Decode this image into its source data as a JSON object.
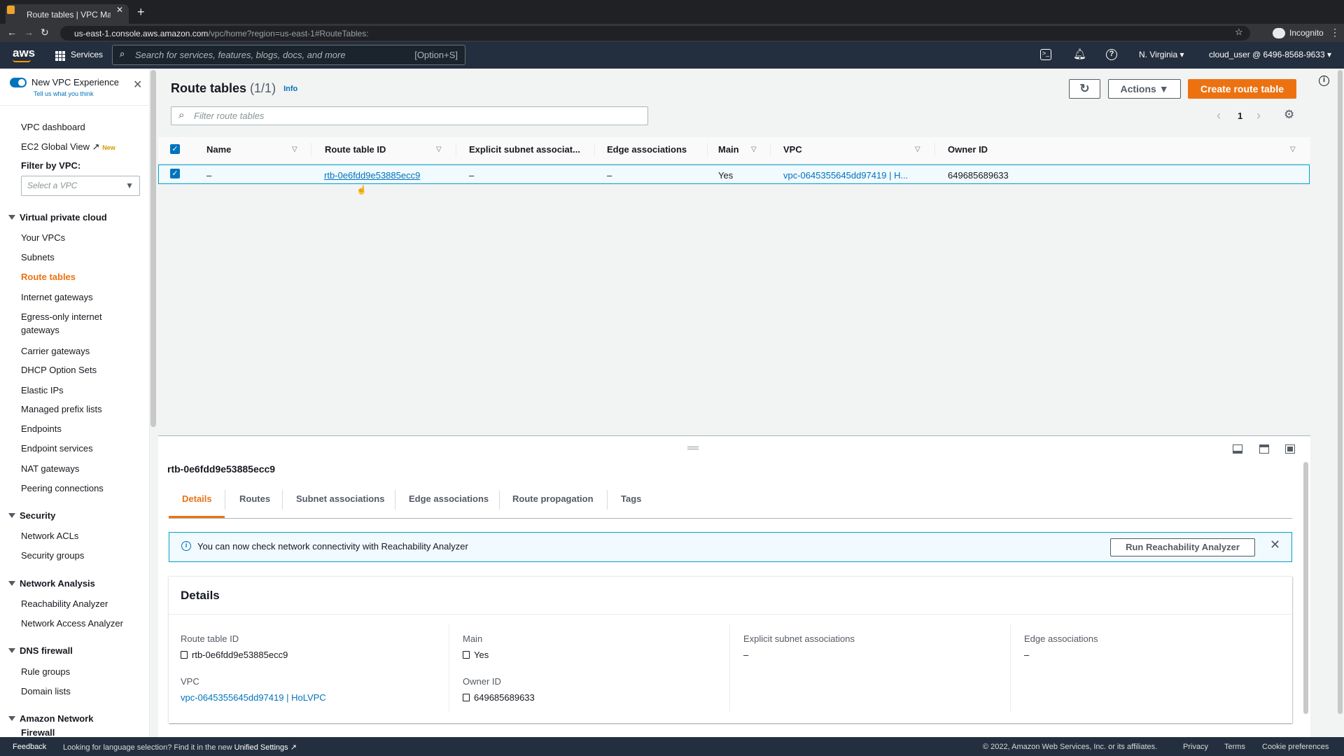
{
  "browser": {
    "tab_title": "Route tables | VPC Manageme",
    "url_host": "us-east-1.console.aws.amazon.com",
    "url_path": "/vpc/home?region=us-east-1#RouteTables:",
    "incognito_label": "Incognito"
  },
  "awsnav": {
    "logo": "aws",
    "services": "Services",
    "search_placeholder": "Search for services, features, blogs, docs, and more",
    "search_shortcut": "[Option+S]",
    "region": "N. Virginia",
    "account": "cloud_user @ 6496-8568-9633"
  },
  "sidebar": {
    "experience_label": "New VPC Experience",
    "feedback_link": "Tell us what you think",
    "vpc_dashboard": "VPC dashboard",
    "ec2_global_view": "EC2 Global View",
    "new_badge": "New",
    "filter_label": "Filter by VPC:",
    "filter_placeholder": "Select a VPC",
    "sections": [
      {
        "title": "Virtual private cloud",
        "items": [
          "Your VPCs",
          "Subnets",
          "Route tables",
          "Internet gateways",
          "Egress-only internet",
          "gateways",
          "Carrier gateways",
          "DHCP Option Sets",
          "Elastic IPs",
          "Managed prefix lists",
          "Endpoints",
          "Endpoint services",
          "NAT gateways",
          "Peering connections"
        ]
      },
      {
        "title": "Security",
        "items": [
          "Network ACLs",
          "Security groups"
        ]
      },
      {
        "title": "Network Analysis",
        "items": [
          "Reachability Analyzer",
          "Network Access Analyzer"
        ]
      },
      {
        "title": "DNS firewall",
        "items": [
          "Rule groups",
          "Domain lists"
        ]
      },
      {
        "title": "Amazon Network",
        "title2": "Firewall"
      }
    ],
    "active_item": "Route tables"
  },
  "main": {
    "title": "Route tables",
    "count": "(1/1)",
    "info": "Info",
    "actions": "Actions",
    "create": "Create route table",
    "filter_placeholder": "Filter route tables",
    "page": "1",
    "columns": [
      "Name",
      "Route table ID",
      "Explicit subnet associat...",
      "Edge associations",
      "Main",
      "VPC",
      "Owner ID"
    ],
    "rows": [
      {
        "name": "–",
        "id": "rtb-0e6fdd9e53885ecc9",
        "explicit": "–",
        "edge": "–",
        "main": "Yes",
        "vpc": "vpc-0645355645dd97419 | H...",
        "owner": "649685689633",
        "selected": true
      }
    ]
  },
  "details": {
    "title": "rtb-0e6fdd9e53885ecc9",
    "tabs": [
      "Details",
      "Routes",
      "Subnet associations",
      "Edge associations",
      "Route propagation",
      "Tags"
    ],
    "active_tab": "Details",
    "alert": "You can now check network connectivity with Reachability Analyzer",
    "alert_button": "Run Reachability Analyzer",
    "heading": "Details",
    "fields": {
      "route_table_id": {
        "label": "Route table ID",
        "value": "rtb-0e6fdd9e53885ecc9"
      },
      "main": {
        "label": "Main",
        "value": "Yes"
      },
      "explicit": {
        "label": "Explicit subnet associations",
        "value": "–"
      },
      "edge": {
        "label": "Edge associations",
        "value": "–"
      },
      "vpc": {
        "label": "VPC",
        "value": "vpc-0645355645dd97419 | HoLVPC"
      },
      "owner": {
        "label": "Owner ID",
        "value": "649685689633"
      }
    }
  },
  "footer": {
    "feedback": "Feedback",
    "language": "Looking for language selection? Find it in the new",
    "unified": "Unified Settings",
    "copyright": "© 2022, Amazon Web Services, Inc. or its affiliates.",
    "privacy": "Privacy",
    "terms": "Terms",
    "cookies": "Cookie preferences"
  },
  "colors": {
    "accent": "#ec7211",
    "link": "#0073bb",
    "nav": "#232f3e",
    "selected_row": "#f1faff"
  }
}
